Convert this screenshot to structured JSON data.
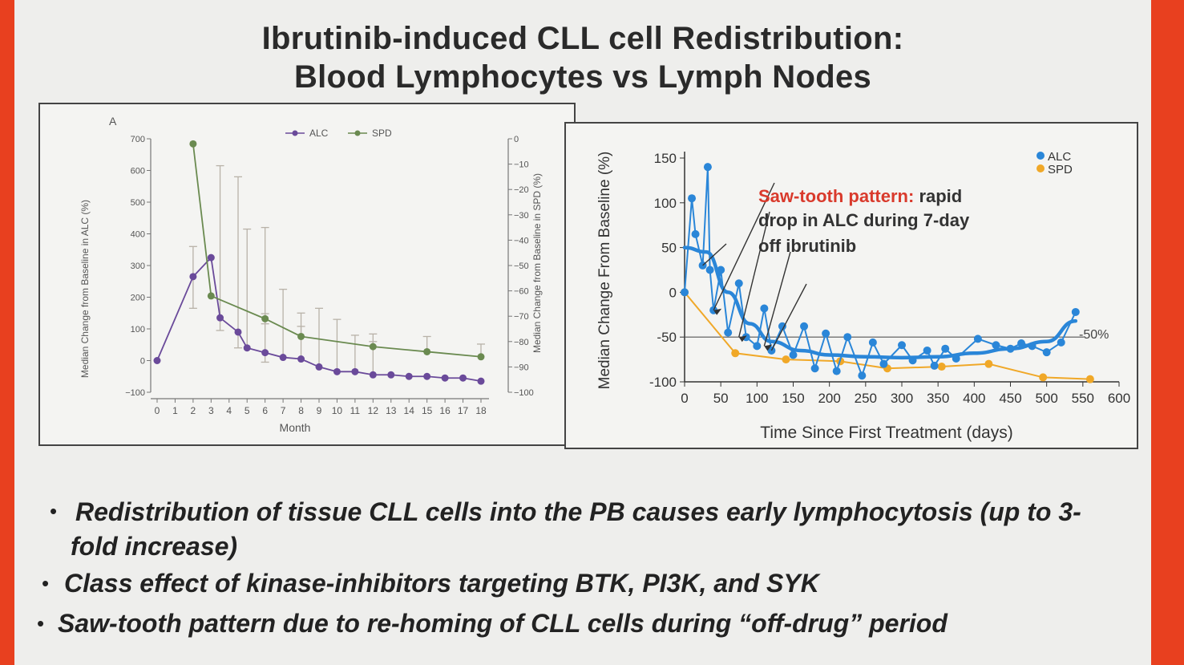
{
  "slide": {
    "title_line1": "Ibrutinib-induced CLL cell Redistribution:",
    "title_line2": "Blood Lymphocytes vs Lymph Nodes",
    "bullets": [
      "Redistribution of tissue CLL cells into the PB causes early lymphocytosis (up to 3-",
      "fold increase)",
      "Class effect of kinase-inhibitors targeting BTK, PI3K, and SYK",
      "Saw-tooth pattern due to re-homing of CLL cells during “off-drug” period"
    ],
    "bullet_symbol": "•"
  },
  "chart_data": [
    {
      "type": "line",
      "panel_label": "A",
      "xlabel": "Month",
      "ylabel_left": "Median Change from Baseline in ALC (%)",
      "ylabel_right": "Median Change from Baseline in SPD (%)",
      "x_ticks": [
        0,
        1,
        2,
        3,
        4,
        5,
        6,
        7,
        8,
        9,
        10,
        11,
        12,
        13,
        14,
        15,
        16,
        17,
        18
      ],
      "ylim_left": [
        -100,
        700
      ],
      "yticks_left": [
        -100,
        0,
        100,
        200,
        300,
        400,
        500,
        600,
        700
      ],
      "ylim_right": [
        -100,
        0
      ],
      "yticks_right": [
        -100,
        -90,
        -80,
        -70,
        -60,
        -50,
        -40,
        -30,
        -20,
        -10,
        0
      ],
      "legend": [
        "ALC",
        "SPD"
      ],
      "colors": {
        "ALC": "#6a4a9a",
        "SPD": "#6a8a50",
        "errorbar": "#b8b2a8"
      },
      "series": [
        {
          "name": "ALC",
          "axis": "left",
          "x": [
            0,
            2,
            3,
            3.5,
            4.5,
            5,
            6,
            7,
            8,
            9,
            10,
            11,
            12,
            13,
            14,
            15,
            16,
            17,
            18
          ],
          "values": [
            0,
            265,
            325,
            135,
            90,
            40,
            25,
            10,
            5,
            -20,
            -35,
            -35,
            -45,
            -45,
            -50,
            -50,
            -55,
            -55,
            -65
          ],
          "error_upper": [
            null,
            360,
            null,
            615,
            580,
            415,
            420,
            225,
            150,
            165,
            130,
            80,
            60,
            null,
            null,
            null,
            null,
            null,
            null
          ],
          "error_lower": [
            null,
            165,
            null,
            95,
            40,
            null,
            -5,
            null,
            null,
            null,
            null,
            null,
            null,
            null,
            null,
            null,
            null,
            null,
            null
          ]
        },
        {
          "name": "SPD",
          "axis": "right",
          "x": [
            2,
            3,
            6,
            8,
            12,
            15,
            18
          ],
          "values": [
            -2,
            -62,
            -71,
            -78,
            -82,
            -84,
            -86
          ],
          "error_upper": [
            null,
            null,
            -69,
            -74,
            -77,
            -78,
            -81
          ],
          "error_lower": [
            null,
            null,
            -73,
            null,
            null,
            null,
            null
          ]
        }
      ]
    },
    {
      "type": "line",
      "xlabel": "Time Since First Treatment (days)",
      "ylabel": "Median Change From Baseline (%)",
      "xlim": [
        0,
        600
      ],
      "x_ticks": [
        0,
        50,
        100,
        150,
        200,
        250,
        300,
        350,
        400,
        450,
        500,
        550,
        600
      ],
      "ylim": [
        -100,
        150
      ],
      "y_ticks": [
        -100,
        -50,
        0,
        50,
        100,
        150
      ],
      "legend": [
        "ALC",
        "SPD"
      ],
      "colors": {
        "ALC": "#2a86d8",
        "SPD": "#f0a828",
        "trend": "#2a86d8",
        "reference": "#555555",
        "annotation_red": "#d93a2c"
      },
      "reference_line": {
        "y": -50,
        "label": "-50%"
      },
      "annotation": {
        "highlight": "Saw-tooth pattern:",
        "line1_rest": " rapid",
        "line2": "drop in ALC during 7-day",
        "line3": "off ibrutinib"
      },
      "series": [
        {
          "name": "ALC",
          "x": [
            0,
            10,
            15,
            25,
            32,
            35,
            40,
            50,
            60,
            75,
            85,
            100,
            110,
            120,
            135,
            150,
            165,
            180,
            195,
            210,
            225,
            245,
            260,
            275,
            300,
            315,
            335,
            345,
            360,
            375,
            405,
            430,
            450,
            465,
            480,
            500,
            520,
            540
          ],
          "values": [
            0,
            105,
            65,
            30,
            140,
            25,
            -20,
            25,
            -45,
            10,
            -50,
            -60,
            -18,
            -65,
            -38,
            -70,
            -38,
            -85,
            -46,
            -88,
            -50,
            -93,
            -56,
            -80,
            -59,
            -76,
            -65,
            -82,
            -63,
            -74,
            -52,
            -59,
            -63,
            -57,
            -60,
            -67,
            -56,
            -22
          ]
        },
        {
          "name": "SPD",
          "x": [
            0,
            70,
            140,
            215,
            280,
            355,
            420,
            495,
            560
          ],
          "values": [
            0,
            -68,
            -75,
            -77,
            -85,
            -83,
            -80,
            -95,
            -97
          ]
        },
        {
          "name": "ALC trend",
          "x": [
            0,
            30,
            60,
            90,
            120,
            160,
            200,
            250,
            300,
            350,
            400,
            450,
            500,
            540
          ],
          "values": [
            50,
            45,
            0,
            -35,
            -55,
            -65,
            -70,
            -72,
            -73,
            -72,
            -68,
            -63,
            -55,
            -32
          ]
        }
      ]
    }
  ]
}
